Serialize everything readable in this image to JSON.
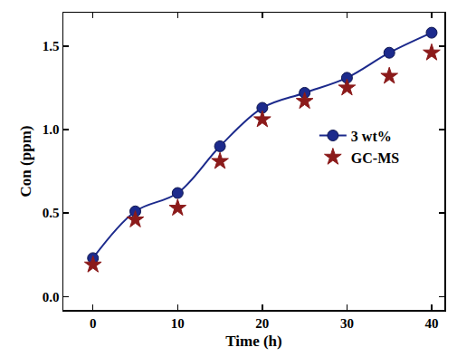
{
  "chart_data": {
    "type": "line",
    "x_label": "Time (h)",
    "y_label": "Con (ppm)",
    "x": [
      0,
      5,
      10,
      15,
      20,
      25,
      30,
      35,
      40
    ],
    "series": [
      {
        "name": "3 wt%",
        "type": "line",
        "color": "#1c2a8c",
        "marker": "circle",
        "line_style": "solid",
        "values": [
          0.23,
          0.51,
          0.62,
          0.9,
          1.13,
          1.22,
          1.31,
          1.46,
          1.58
        ]
      },
      {
        "name": "GC-MS",
        "type": "scatter",
        "color": "#8b1a1a",
        "marker": "star",
        "values": [
          0.19,
          0.46,
          0.53,
          0.81,
          1.06,
          1.17,
          1.25,
          1.32,
          1.46
        ]
      }
    ],
    "xlim": [
      -3.5,
      41.5
    ],
    "xticks": [
      0,
      10,
      20,
      30,
      40
    ],
    "ylim": [
      -0.08,
      1.7
    ],
    "yticks": [
      {
        "value": 0,
        "label": "0.0"
      },
      0.5,
      {
        "value": 1,
        "label": "1.0"
      },
      1.5
    ],
    "grid": false,
    "legend": "right"
  }
}
